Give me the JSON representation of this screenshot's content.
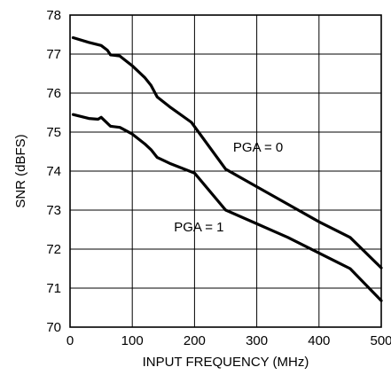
{
  "chart_data": {
    "type": "line",
    "title": "",
    "xlabel": "INPUT FREQUENCY (MHz)",
    "ylabel": "SNR (dBFS)",
    "xlim": [
      0,
      500
    ],
    "ylim": [
      70,
      78
    ],
    "xticks": [
      0,
      100,
      200,
      300,
      400,
      500
    ],
    "yticks": [
      70,
      71,
      72,
      73,
      74,
      75,
      76,
      77,
      78
    ],
    "grid": true,
    "legend": "none",
    "annotations": [
      {
        "text": "PGA = 0",
        "x": 262,
        "y": 74.5
      },
      {
        "text": "PGA = 1",
        "x": 167,
        "y": 72.45
      }
    ],
    "series": [
      {
        "name": "PGA = 0",
        "x": [
          5,
          30,
          50,
          60,
          65,
          80,
          100,
          120,
          130,
          140,
          160,
          195,
          250,
          300,
          350,
          400,
          450,
          500
        ],
        "y": [
          77.42,
          77.3,
          77.22,
          77.1,
          76.98,
          76.95,
          76.7,
          76.4,
          76.2,
          75.9,
          75.65,
          75.25,
          74.05,
          73.6,
          73.15,
          72.7,
          72.3,
          71.52
        ]
      },
      {
        "name": "PGA = 1",
        "x": [
          5,
          30,
          45,
          50,
          65,
          80,
          100,
          120,
          130,
          140,
          160,
          200,
          250,
          300,
          350,
          400,
          450,
          500
        ],
        "y": [
          75.45,
          75.35,
          75.33,
          75.38,
          75.15,
          75.12,
          74.95,
          74.7,
          74.55,
          74.35,
          74.2,
          73.95,
          73.0,
          72.65,
          72.3,
          71.9,
          71.5,
          70.68
        ]
      }
    ]
  }
}
